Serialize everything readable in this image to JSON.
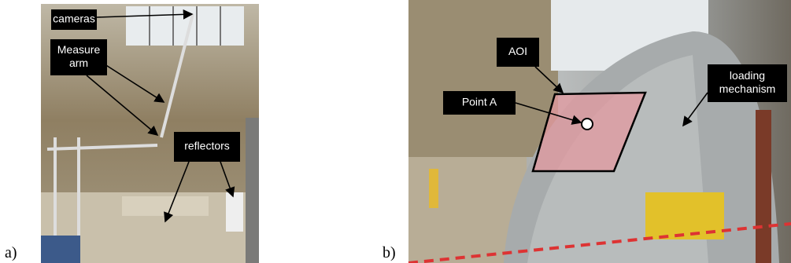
{
  "panels": [
    {
      "label": "a)",
      "annotations": [
        {
          "lines": [
            "cameras"
          ]
        },
        {
          "lines": [
            "Measure",
            "arm"
          ]
        },
        {
          "lines": [
            "reflectors"
          ]
        }
      ]
    },
    {
      "label": "b)",
      "annotations": [
        {
          "lines": [
            "AOI"
          ]
        },
        {
          "lines": [
            "Point A"
          ]
        },
        {
          "lines": [
            "loading",
            "mechanism"
          ]
        }
      ]
    }
  ]
}
